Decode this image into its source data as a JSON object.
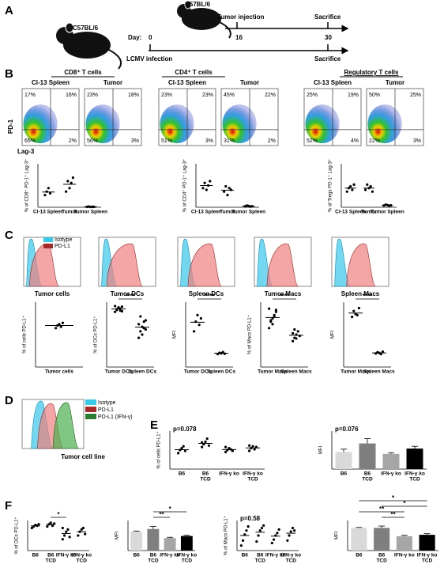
{
  "panel_labels": [
    "A",
    "B",
    "C",
    "D",
    "E",
    "F"
  ],
  "timeline": {
    "strain_1": "C57BL/6",
    "strain_2": "C57BL/6",
    "day_label": "Day:",
    "days": [
      "0",
      "16",
      "30"
    ],
    "tumor_injection": "Tumor injection",
    "sacrifice_top": "Sacrifice",
    "lcmv": "LCMV infection",
    "sacrifice_bottom": "Sacrifice"
  },
  "flow": {
    "headers": [
      "CD8⁺ T cells",
      "CD4⁺ T cells",
      "Regulatory T cells"
    ],
    "y_axis": "PD-1",
    "x_axis": "Lag-3",
    "plots": [
      {
        "title": "Cl-13 Spleen",
        "quadrants": [
          "17%",
          "16%",
          "65%",
          "2%"
        ]
      },
      {
        "title": "Tumor",
        "quadrants": [
          "23%",
          "18%",
          "56%",
          "3%"
        ]
      },
      {
        "title": "Cl-13 Spleen",
        "quadrants": [
          "23%",
          "23%",
          "51%",
          "3%"
        ]
      },
      {
        "title": "Tumor",
        "quadrants": [
          "45%",
          "22%",
          "31%",
          "2%"
        ]
      },
      {
        "title": "Cl-13 Spleen",
        "quadrants": [
          "25%",
          "19%",
          "52%",
          "4%"
        ]
      },
      {
        "title": "Tumor",
        "quadrants": [
          "50%",
          "25%",
          "22%",
          "3%"
        ]
      }
    ]
  },
  "histograms": {
    "legend": [
      "Isotype",
      "PD-L1"
    ],
    "titles": [
      "Tumor cells",
      "Tumor DCs",
      "Spleen DCs",
      "Tumor Macs",
      "Spleen Macs"
    ]
  },
  "histogram_d": {
    "legend": [
      "Isotype",
      "PD-L1",
      "PD-L1 (IFN-γ)"
    ],
    "title": "Tumor cell line"
  },
  "plots": [
    {
      "type": "scatter",
      "ylabel": "% of CD8⁺ PD-1⁺ Lag-3⁺",
      "categories": [
        "Cl-13 Spleen",
        "Tumor",
        "Tumor Spleen"
      ],
      "groups": [
        [
          14,
          18,
          22,
          16
        ],
        [
          18,
          30,
          22,
          28,
          34
        ],
        [
          0.5,
          0.8,
          0.3,
          0.6,
          0.4
        ]
      ],
      "ylim": [
        0,
        50
      ],
      "annotations": []
    },
    {
      "type": "scatter",
      "ylabel": "% of CD4⁺ PD-1⁺ Lag-3⁺",
      "categories": [
        "Cl-13 Spleen",
        "Tumor",
        "Tumor Spleen"
      ],
      "groups": [
        [
          22,
          28,
          20,
          25,
          30
        ],
        [
          18,
          24,
          14,
          22,
          20
        ],
        [
          1,
          2,
          1.5,
          0.8,
          1.2
        ]
      ],
      "ylim": [
        0,
        50
      ],
      "annotations": []
    },
    {
      "type": "scatter",
      "ylabel": "% of Tregs PD-1⁺ Lag-3⁺",
      "categories": [
        "Cl-13 Spleen",
        "Tumor",
        "Tumor Spleen"
      ],
      "groups": [
        [
          18,
          22,
          24,
          20,
          26
        ],
        [
          20,
          26,
          22,
          24,
          18
        ],
        [
          2,
          3,
          2.5,
          1.8,
          2.2
        ]
      ],
      "ylim": [
        0,
        50
      ],
      "annotations": []
    },
    {
      "type": "scatter",
      "ylabel": "% of cells PD-L1⁺",
      "categories": [
        "Tumor cells"
      ],
      "groups": [
        [
          60,
          64,
          66,
          62,
          68
        ]
      ],
      "ylim": [
        0,
        100
      ],
      "annotations": []
    },
    {
      "type": "scatter",
      "ylabel": "% of DCs PD-L1⁺",
      "categories": [
        "Tumor DCs",
        "Spleen DCs"
      ],
      "groups": [
        [
          85,
          88,
          92,
          90,
          86,
          94,
          89,
          91,
          87,
          93
        ],
        [
          45,
          55,
          62,
          70,
          58,
          66,
          78,
          50,
          60,
          72
        ]
      ],
      "ylim": [
        0,
        100
      ],
      "annotations": [
        "****"
      ]
    },
    {
      "type": "scatter",
      "ylabel": "MFI",
      "categories": [
        "Tumor DCs",
        "Spleen DCs"
      ],
      "groups": [
        [
          5500,
          7000,
          8000,
          6500,
          7500
        ],
        [
          2000,
          2200,
          2100,
          2300,
          2050
        ]
      ],
      "ylim": [
        0,
        10000
      ],
      "annotations": [
        "****"
      ]
    },
    {
      "type": "scatter",
      "ylabel": "% of Macs PD-L1⁺",
      "categories": [
        "Tumor Macs",
        "Spleen Macs"
      ],
      "groups": [
        [
          60,
          70,
          75,
          80,
          85,
          90,
          72,
          66,
          78,
          88
        ],
        [
          40,
          45,
          50,
          55,
          48,
          52,
          58,
          44
        ]
      ],
      "ylim": [
        0,
        100
      ],
      "annotations": [
        "****"
      ]
    },
    {
      "type": "scatter",
      "ylabel": "MFI",
      "categories": [
        "Tumor Macs",
        "Spleen Macs"
      ],
      "groups": [
        [
          8500,
          9500,
          9000,
          8800,
          10000
        ],
        [
          2300,
          2500,
          2400,
          2200,
          2600
        ]
      ],
      "ylim": [
        0,
        11000
      ],
      "annotations": [
        "****"
      ]
    },
    {
      "type": "scatter",
      "ylabel": "% of cells PD-L1⁺",
      "categories": [
        [
          "B6"
        ],
        [
          "B6",
          "TCD"
        ],
        [
          "IFN-γ ko"
        ],
        [
          "IFN-γ ko",
          "TCD"
        ]
      ],
      "groups": [
        [
          42,
          50,
          55,
          60,
          48
        ],
        [
          58,
          65,
          72,
          80,
          62,
          70
        ],
        [
          45,
          50,
          55,
          52,
          48,
          58
        ],
        [
          48,
          55,
          60,
          52,
          58,
          62
        ]
      ],
      "ylim": [
        0,
        100
      ],
      "annotations": [
        "p=0.078"
      ]
    },
    {
      "type": "bar",
      "ylabel": "MFI",
      "categories": [
        [
          "B6"
        ],
        [
          "B6",
          "TCD"
        ],
        [
          "IFN-γ ko"
        ],
        [
          "IFN-γ ko",
          "TCD"
        ]
      ],
      "values": [
        900,
        1350,
        800,
        1080
      ],
      "errors": [
        150,
        250,
        60,
        120
      ],
      "colors": [
        "#d9d9d9",
        "#7f7f7f",
        "#a6a6a6",
        "#000000"
      ],
      "ylim": [
        0,
        2000
      ],
      "annotations": [
        "p=0.076"
      ]
    },
    {
      "type": "scatter",
      "ylabel": "% of DCs PD-L1⁺",
      "categories": [
        [
          "B6"
        ],
        [
          "B6",
          "TCD"
        ],
        [
          "IFN-γ ko"
        ],
        [
          "IFN-γ ko",
          "TCD"
        ]
      ],
      "groups": [
        [
          90,
          92,
          94,
          93,
          95
        ],
        [
          92,
          95,
          97,
          93,
          96
        ],
        [
          75,
          80,
          85,
          88,
          78,
          90
        ],
        [
          80,
          85,
          88,
          90,
          82
        ]
      ],
      "ylim": [
        60,
        100
      ],
      "annotations": [
        "*"
      ]
    },
    {
      "type": "bar",
      "ylabel": "MFI",
      "categories": [
        [
          "B6"
        ],
        [
          "B6",
          "TCD"
        ],
        [
          "IFN-γ ko"
        ],
        [
          "IFN-γ ko",
          "TCD"
        ]
      ],
      "values": [
        3800,
        4300,
        2500,
        2900
      ],
      "errors": [
        100,
        500,
        150,
        150
      ],
      "colors": [
        "#d9d9d9",
        "#7f7f7f",
        "#a6a6a6",
        "#000000"
      ],
      "ylim": [
        0,
        6000
      ],
      "annotations": [
        "*",
        "**"
      ]
    },
    {
      "type": "scatter",
      "ylabel": "% of Macs PD-L1⁺",
      "categories": [
        [
          "B6"
        ],
        [
          "B6",
          "TCD"
        ],
        [
          "IFN-γ ko"
        ],
        [
          "IFN-γ ko",
          "TCD"
        ]
      ],
      "groups": [
        [
          50,
          60,
          72,
          80,
          88
        ],
        [
          58,
          70,
          80,
          85,
          90
        ],
        [
          55,
          62,
          70,
          75,
          82
        ],
        [
          60,
          70,
          78,
          85,
          80
        ]
      ],
      "ylim": [
        40,
        100
      ],
      "annotations": [
        "p=0.58"
      ]
    },
    {
      "type": "bar",
      "ylabel": "MFI",
      "categories": [
        [
          "B6"
        ],
        [
          "B6",
          "TCD"
        ],
        [
          "IFN-γ ko"
        ],
        [
          "IFN-γ ko",
          "TCD"
        ]
      ],
      "values": [
        4900,
        4900,
        3100,
        3400
      ],
      "errors": [
        100,
        400,
        200,
        250
      ],
      "colors": [
        "#d9d9d9",
        "#7f7f7f",
        "#a6a6a6",
        "#000000"
      ],
      "ylim": [
        0,
        6500
      ],
      "annotations": [
        "*",
        "*",
        "**",
        "**"
      ]
    }
  ]
}
